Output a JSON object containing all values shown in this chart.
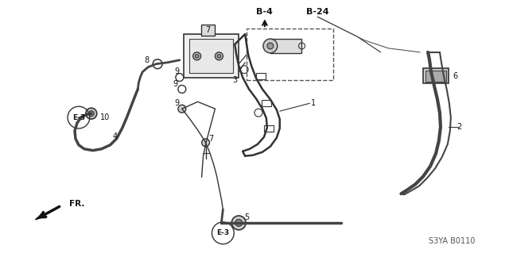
{
  "bg_color": "#ffffff",
  "lc": "#222222",
  "gc": "#777777",
  "title_code": "S3YA B0110",
  "figsize": [
    6.4,
    3.19
  ],
  "dpi": 100
}
